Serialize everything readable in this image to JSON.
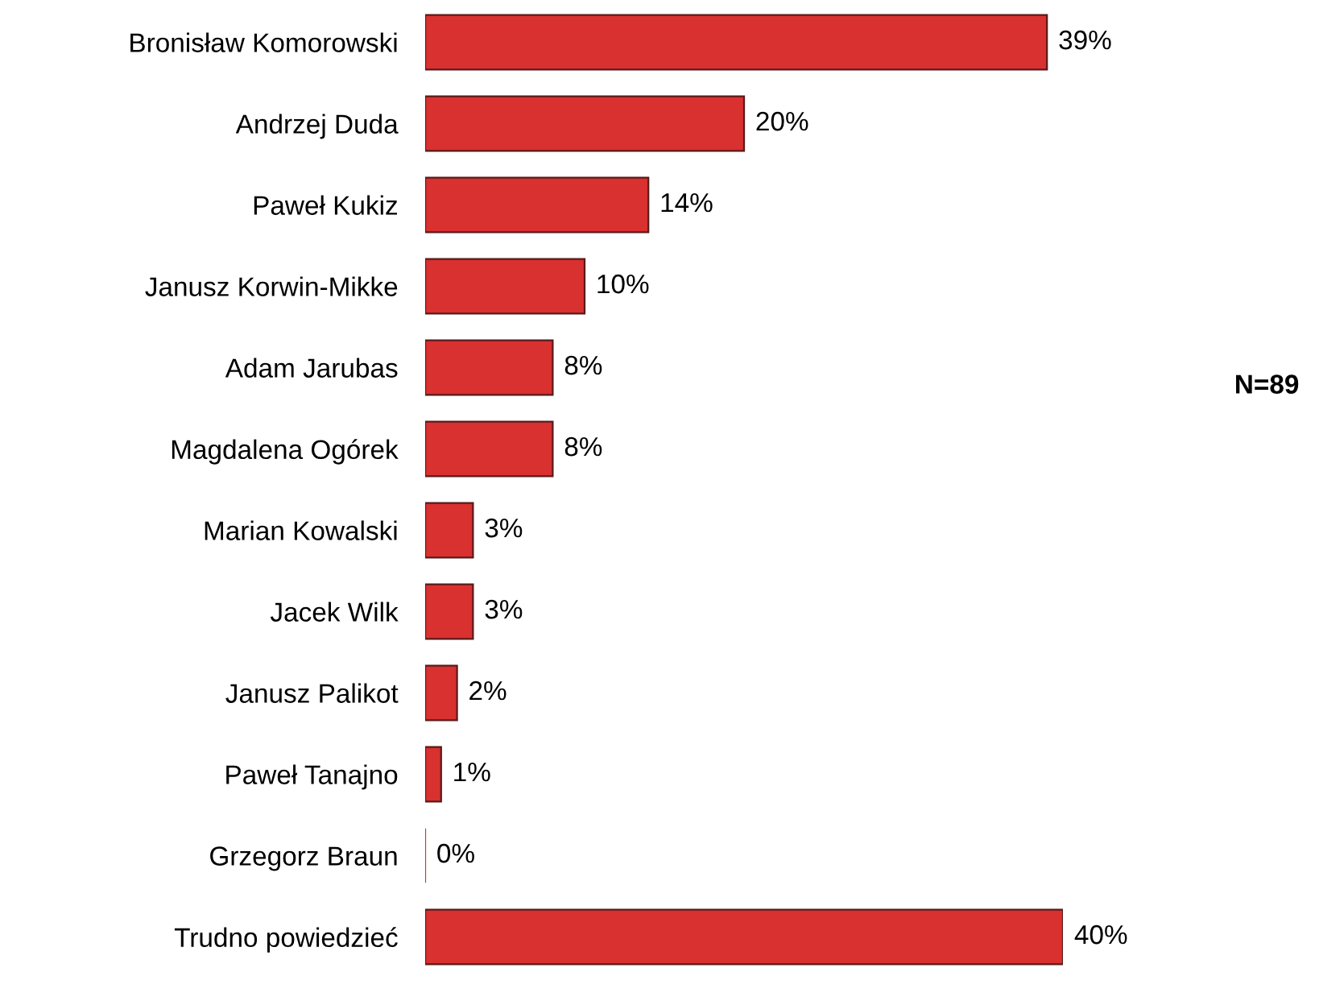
{
  "chart_data": {
    "type": "bar",
    "orientation": "horizontal",
    "categories": [
      "Bronisław Komorowski",
      "Andrzej Duda",
      "Paweł Kukiz",
      "Janusz Korwin-Mikke",
      "Adam Jarubas",
      "Magdalena Ogórek",
      "Marian Kowalski",
      "Jacek Wilk",
      "Janusz Palikot",
      "Paweł Tanajno",
      "Grzegorz Braun",
      "Trudno powiedzieć"
    ],
    "values": [
      39,
      20,
      14,
      10,
      8,
      8,
      3,
      3,
      2,
      1,
      0,
      40
    ],
    "value_labels": [
      "39%",
      "20%",
      "14%",
      "10%",
      "8%",
      "8%",
      "3%",
      "3%",
      "2%",
      "1%",
      "0%",
      "40%"
    ],
    "color": "#d93030",
    "annotations": [
      "N=89"
    ]
  }
}
